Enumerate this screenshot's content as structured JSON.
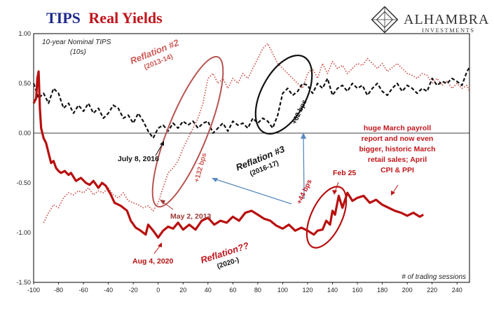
{
  "title": {
    "part1": "TIPS",
    "part2": "Real Yields"
  },
  "logo": {
    "name": "ALHAMBRA",
    "sub": "INVESTMENTS"
  },
  "colors": {
    "title_blue": "#1f2a8c",
    "title_red": "#c0161c",
    "dark_red": "#b80f0f",
    "pink": "#cc5a55",
    "black": "#111111",
    "arrow_blue": "#5b8ac2",
    "annot_red": "#c0161c",
    "annot_brown": "#9b3a37"
  },
  "chart_data": {
    "type": "line",
    "xlabel": "# of trading sessions",
    "ylabel": "",
    "xlim": [
      -100,
      250
    ],
    "ylim": [
      -1.5,
      1.0
    ],
    "xticks": [
      -100,
      -80,
      -60,
      -40,
      -20,
      0,
      20,
      40,
      60,
      80,
      100,
      120,
      140,
      160,
      180,
      200,
      220,
      240
    ],
    "yticks": [
      1.0,
      0.5,
      0.0,
      -0.5,
      -1.0,
      -1.5
    ],
    "ytick_labels": [
      "1.00",
      "0.50",
      "0.00",
      "-0.50",
      "-1.00",
      "-1.50"
    ],
    "legend_note": [
      "10-year Nominal TIPS",
      "(10s)"
    ],
    "series": [
      {
        "key": "s2020",
        "style": "solid",
        "x": [
          -100,
          -98,
          -97,
          -96,
          -95,
          -94,
          -92,
          -90,
          -88,
          -86,
          -84,
          -82,
          -80,
          -78,
          -75,
          -72,
          -70,
          -66,
          -62,
          -58,
          -55,
          -52,
          -48,
          -45,
          -42,
          -38,
          -35,
          -30,
          -25,
          -22,
          -18,
          -14,
          -10,
          -8,
          -4,
          0,
          4,
          8,
          12,
          16,
          20,
          25,
          30,
          35,
          40,
          45,
          50,
          55,
          60,
          65,
          70,
          75,
          80,
          85,
          90,
          95,
          100,
          105,
          110,
          115,
          120,
          125,
          128,
          132,
          135,
          138,
          140,
          142,
          145,
          148,
          152,
          156,
          160,
          165,
          170,
          175,
          180,
          185,
          190,
          195,
          200,
          205,
          210,
          213
        ],
        "y": [
          0.3,
          0.35,
          0.55,
          0.62,
          0.25,
          0.05,
          -0.05,
          -0.1,
          -0.2,
          -0.3,
          -0.28,
          -0.35,
          -0.38,
          -0.4,
          -0.38,
          -0.42,
          -0.4,
          -0.48,
          -0.45,
          -0.5,
          -0.52,
          -0.48,
          -0.55,
          -0.5,
          -0.53,
          -0.62,
          -0.7,
          -0.73,
          -0.78,
          -0.88,
          -0.95,
          -0.98,
          -1.02,
          -0.92,
          -0.98,
          -1.05,
          -0.98,
          -0.94,
          -0.96,
          -0.9,
          -0.97,
          -0.92,
          -0.97,
          -0.88,
          -0.85,
          -0.92,
          -0.88,
          -0.9,
          -0.84,
          -0.88,
          -0.8,
          -0.78,
          -0.82,
          -0.86,
          -0.88,
          -0.93,
          -0.96,
          -0.92,
          -0.98,
          -0.95,
          -0.98,
          -1.02,
          -0.98,
          -0.97,
          -0.88,
          -0.92,
          -0.78,
          -0.82,
          -0.63,
          -0.75,
          -0.6,
          -0.68,
          -0.65,
          -0.63,
          -0.7,
          -0.67,
          -0.72,
          -0.75,
          -0.78,
          -0.8,
          -0.83,
          -0.8,
          -0.84,
          -0.82
        ]
      },
      {
        "key": "s2013",
        "style": "dotted",
        "x": [
          -92,
          -88,
          -84,
          -80,
          -76,
          -72,
          -68,
          -64,
          -60,
          -56,
          -52,
          -48,
          -44,
          -40,
          -36,
          -32,
          -28,
          -24,
          -20,
          -16,
          -12,
          -8,
          -4,
          0,
          4,
          8,
          12,
          16,
          20,
          24,
          28,
          32,
          36,
          40,
          44,
          48,
          52,
          56,
          60,
          64,
          68,
          72,
          76,
          80,
          84,
          88,
          92,
          96,
          100,
          104,
          108,
          112,
          116,
          120,
          124,
          128,
          132,
          136,
          140,
          144,
          148,
          152,
          156,
          160,
          164,
          168,
          172,
          176,
          180,
          184,
          188,
          192,
          196,
          200,
          204,
          208,
          212,
          216,
          220,
          224,
          228,
          232,
          236,
          240,
          244,
          248,
          250
        ],
        "y": [
          -0.9,
          -0.8,
          -0.72,
          -0.75,
          -0.65,
          -0.6,
          -0.62,
          -0.58,
          -0.6,
          -0.55,
          -0.62,
          -0.58,
          -0.6,
          -0.55,
          -0.62,
          -0.65,
          -0.6,
          -0.68,
          -0.7,
          -0.72,
          -0.75,
          -0.73,
          -0.78,
          -0.7,
          -0.55,
          -0.4,
          -0.35,
          -0.28,
          -0.15,
          -0.05,
          0.05,
          0.15,
          0.3,
          0.55,
          0.6,
          0.5,
          0.55,
          0.45,
          0.55,
          0.5,
          0.6,
          0.55,
          0.65,
          0.75,
          0.85,
          0.9,
          0.8,
          0.7,
          0.65,
          0.6,
          0.55,
          0.5,
          0.45,
          0.6,
          0.65,
          0.55,
          0.7,
          0.6,
          0.72,
          0.65,
          0.68,
          0.6,
          0.65,
          0.7,
          0.68,
          0.75,
          0.7,
          0.65,
          0.7,
          0.62,
          0.66,
          0.7,
          0.65,
          0.6,
          0.58,
          0.55,
          0.6,
          0.58,
          0.5,
          0.55,
          0.48,
          0.52,
          0.45,
          0.5,
          0.45,
          0.48,
          0.42
        ]
      },
      {
        "key": "s2016",
        "style": "dashed",
        "x": [
          -100,
          -96,
          -92,
          -88,
          -84,
          -80,
          -76,
          -72,
          -68,
          -64,
          -60,
          -56,
          -52,
          -48,
          -44,
          -40,
          -36,
          -32,
          -28,
          -24,
          -20,
          -16,
          -12,
          -8,
          -4,
          0,
          4,
          8,
          12,
          16,
          20,
          24,
          28,
          32,
          36,
          40,
          44,
          48,
          52,
          56,
          60,
          64,
          68,
          72,
          76,
          80,
          84,
          88,
          92,
          96,
          100,
          104,
          108,
          112,
          116,
          120,
          124,
          128,
          132,
          136,
          140,
          144,
          148,
          152,
          156,
          160,
          164,
          168,
          172,
          176,
          180,
          184,
          188,
          192,
          196,
          200,
          204,
          208,
          212,
          216,
          220,
          224,
          228,
          232,
          236,
          240,
          244,
          248,
          250
        ],
        "y": [
          0.5,
          0.35,
          0.4,
          0.3,
          0.45,
          0.4,
          0.25,
          0.3,
          0.2,
          0.28,
          0.22,
          0.3,
          0.2,
          0.25,
          0.15,
          0.2,
          0.28,
          0.25,
          0.15,
          0.18,
          0.1,
          0.2,
          0.12,
          0.02,
          -0.05,
          0.05,
          0.08,
          0.02,
          0.1,
          0.05,
          0.12,
          0.08,
          0.12,
          0.05,
          0.1,
          0.12,
          0.0,
          0.05,
          0.1,
          0.02,
          0.12,
          0.08,
          0.1,
          0.05,
          0.15,
          0.1,
          0.15,
          0.12,
          0.05,
          0.18,
          0.4,
          0.45,
          0.38,
          0.42,
          0.5,
          0.48,
          0.4,
          0.5,
          0.45,
          0.55,
          0.38,
          0.45,
          0.48,
          0.42,
          0.5,
          0.45,
          0.48,
          0.38,
          0.45,
          0.5,
          0.42,
          0.38,
          0.45,
          0.5,
          0.42,
          0.48,
          0.45,
          0.4,
          0.45,
          0.42,
          0.55,
          0.48,
          0.52,
          0.5,
          0.55,
          0.52,
          0.48,
          0.62,
          0.66
        ]
      }
    ],
    "annotations": [
      {
        "key": "reflation2",
        "lines": [
          "Reflation #2",
          "(2013-14)"
        ]
      },
      {
        "key": "reflation3",
        "lines": [
          "Reflation #3",
          "(2016-17)"
        ]
      },
      {
        "key": "reflation2020",
        "lines": [
          "Reflation??",
          "(2020-)"
        ]
      },
      {
        "key": "july8",
        "lines": [
          "July 8, 2016"
        ]
      },
      {
        "key": "may2",
        "lines": [
          "May 2, 2013"
        ]
      },
      {
        "key": "aug4",
        "lines": [
          "Aug 4, 2020"
        ]
      },
      {
        "key": "feb25",
        "lines": [
          "Feb 25"
        ]
      },
      {
        "key": "bps132",
        "lines": [
          "+132 bps"
        ]
      },
      {
        "key": "bps62",
        "lines": [
          "+62 bps"
        ]
      },
      {
        "key": "bps44",
        "lines": [
          "+44 bps"
        ]
      },
      {
        "key": "payroll",
        "lines": [
          "huge March payroll",
          "report and now even",
          "bigger, historic March",
          "retail sales; April",
          "CPI & PPI"
        ]
      }
    ]
  }
}
